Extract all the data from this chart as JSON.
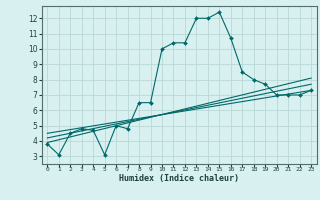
{
  "xlabel": "Humidex (Indice chaleur)",
  "background_color": "#d8f0f0",
  "grid_color": "#b8d8d8",
  "line_color": "#006868",
  "xlim": [
    -0.5,
    23.5
  ],
  "ylim": [
    2.5,
    12.8
  ],
  "yticks": [
    3,
    4,
    5,
    6,
    7,
    8,
    9,
    10,
    11,
    12
  ],
  "xticks": [
    0,
    1,
    2,
    3,
    4,
    5,
    6,
    7,
    8,
    9,
    10,
    11,
    12,
    13,
    14,
    15,
    16,
    17,
    18,
    19,
    20,
    21,
    22,
    23
  ],
  "main_line_x": [
    0,
    1,
    2,
    3,
    4,
    5,
    6,
    7,
    8,
    9,
    10,
    11,
    12,
    13,
    14,
    15,
    16,
    17,
    18,
    19,
    20,
    21,
    22,
    23
  ],
  "main_line_y": [
    3.8,
    3.1,
    4.5,
    4.8,
    4.7,
    3.1,
    5.0,
    4.8,
    6.5,
    6.5,
    10.0,
    10.4,
    10.4,
    12.0,
    12.0,
    12.4,
    10.7,
    8.5,
    8.0,
    7.7,
    7.0,
    7.0,
    7.0,
    7.3
  ],
  "line2_x": [
    0,
    23
  ],
  "line2_y": [
    3.9,
    8.1
  ],
  "line3_x": [
    0,
    23
  ],
  "line3_y": [
    4.2,
    7.7
  ],
  "line4_x": [
    0,
    23
  ],
  "line4_y": [
    4.5,
    7.3
  ]
}
